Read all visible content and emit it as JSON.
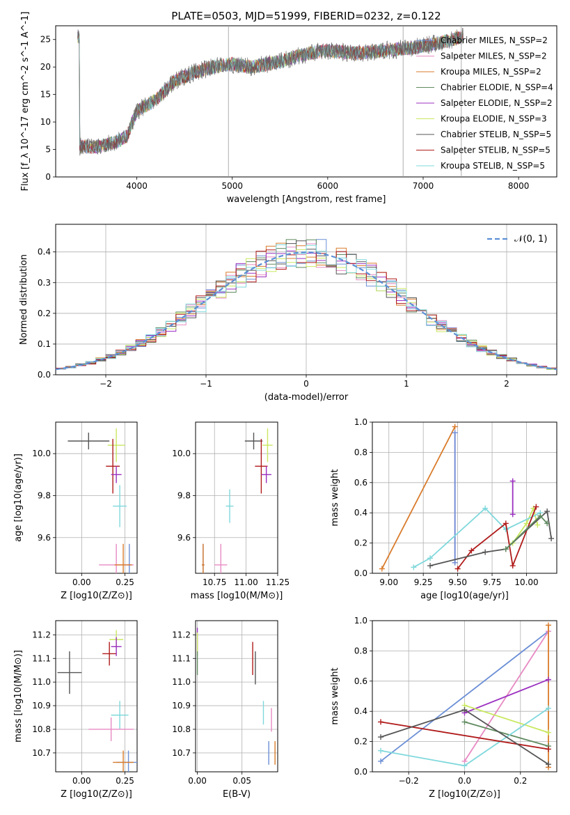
{
  "figure": {
    "title": "PLATE=0503, MJD=51999, FIBERID=0232, z=0.122"
  },
  "colors": {
    "chabrier_miles": "#6b8fd6",
    "salpeter_miles": "#e78ac3",
    "kroupa_miles": "#d97b2b",
    "chabrier_elodie": "#5f8a5f",
    "salpeter_elodie": "#9b30c0",
    "kroupa_elodie": "#c9e860",
    "chabrier_stelib": "#555555",
    "salpeter_stelib": "#b01a1a",
    "kroupa_stelib": "#7fd8dc",
    "norm_curve": "#5b8fd6",
    "grid": "#b0b0b0"
  },
  "legend": {
    "top": [
      "Chabrier MILES, N_SSP=2",
      "Salpeter MILES, N_SSP=2",
      "Kroupa MILES, N_SSP=2",
      "Chabrier ELODIE, N_SSP=4",
      "Salpeter ELODIE, N_SSP=2",
      "Kroupa ELODIE, N_SSP=3",
      "Chabrier STELIB, N_SSP=5",
      "Salpeter STELIB, N_SSP=5",
      "Kroupa STELIB, N_SSP=5"
    ],
    "hist": "𝒩(0, 1)"
  },
  "chart_data": [
    {
      "id": "spectrum",
      "type": "line",
      "xlabel": "wavelength [Angstrom, rest frame]",
      "ylabel": "Flux [f_λ 10^-17 erg cm^-2 s^-1 A^-1]",
      "xlim": [
        3150,
        8400
      ],
      "ylim": [
        0,
        27.5
      ],
      "xticks": [
        4000,
        5000,
        6000,
        7000,
        8000
      ],
      "yticks": [
        0,
        5,
        10,
        15,
        20,
        25
      ],
      "grid": false,
      "legend_position": "top-right",
      "data_trend": {
        "x": [
          3400,
          3600,
          3800,
          3900,
          4000,
          4200,
          4400,
          4600,
          4800,
          5000,
          5200,
          5500,
          5800,
          6000,
          6300,
          6600,
          6900,
          7200,
          7400
        ],
        "y": [
          5.5,
          5.5,
          6.5,
          7.5,
          12,
          14,
          17.5,
          19,
          20,
          20.5,
          20,
          21,
          22.5,
          23,
          22.5,
          23,
          23.5,
          24.5,
          25.5
        ]
      }
    },
    {
      "id": "residual-hist",
      "type": "histogram",
      "xlabel": "(data-model)/error",
      "ylabel": "Normed distribution",
      "xlim": [
        -2.5,
        2.5
      ],
      "ylim": [
        0,
        0.49
      ],
      "xticks": [
        -2,
        -1,
        0,
        1,
        2
      ],
      "yticks": [
        0.0,
        0.1,
        0.2,
        0.3,
        0.4
      ],
      "grid": true,
      "legend_position": "top-right",
      "bin_width": 0.1
    },
    {
      "id": "age-vs-z",
      "type": "errorbar",
      "xlabel": "Z [log10(Z/Z⊙)]",
      "ylabel": "age [log10(age/yr)]",
      "xlim": [
        -0.15,
        0.32
      ],
      "ylim": [
        9.43,
        10.15
      ],
      "xticks": [
        0.0,
        0.25
      ],
      "yticks": [
        9.6,
        9.8,
        10.0
      ],
      "grid": true,
      "points": [
        {
          "model": "chabrier_stelib",
          "x": 0.04,
          "y": 10.06,
          "xerr": 0.12,
          "yerr": 0.04
        },
        {
          "model": "kroupa_elodie",
          "x": 0.2,
          "y": 10.04,
          "xerr": 0.05,
          "yerr": 0.08
        },
        {
          "model": "salpeter_stelib",
          "x": 0.18,
          "y": 9.94,
          "xerr": 0.04,
          "yerr": 0.13
        },
        {
          "model": "salpeter_elodie",
          "x": 0.2,
          "y": 9.9,
          "xerr": 0.03,
          "yerr": 0.04
        },
        {
          "model": "kroupa_stelib",
          "x": 0.22,
          "y": 9.75,
          "xerr": 0.04,
          "yerr": 0.1
        },
        {
          "model": "chabrier_miles",
          "x": 0.275,
          "y": 9.47,
          "xerr": 0.01,
          "yerr": 0.1
        },
        {
          "model": "salpeter_miles",
          "x": 0.2,
          "y": 9.47,
          "xerr": 0.1,
          "yerr": 0.1
        },
        {
          "model": "kroupa_miles",
          "x": 0.24,
          "y": 9.47,
          "xerr": 0.05,
          "yerr": 0.1
        }
      ]
    },
    {
      "id": "age-vs-mass",
      "type": "errorbar",
      "xlabel": "mass [log10(M/M⊙)]",
      "ylabel": "",
      "xlim": [
        10.6,
        11.25
      ],
      "ylim": [
        9.43,
        10.15
      ],
      "xticks": [
        10.75,
        11.0,
        11.25
      ],
      "yticks": [
        9.6,
        9.8,
        10.0
      ],
      "grid": true,
      "points": [
        {
          "model": "chabrier_stelib",
          "x": 11.06,
          "y": 10.06,
          "xerr": 0.07,
          "yerr": 0.04
        },
        {
          "model": "kroupa_elodie",
          "x": 11.17,
          "y": 10.04,
          "xerr": 0.04,
          "yerr": 0.08
        },
        {
          "model": "salpeter_stelib",
          "x": 11.12,
          "y": 9.94,
          "xerr": 0.05,
          "yerr": 0.13
        },
        {
          "model": "salpeter_elodie",
          "x": 11.16,
          "y": 9.9,
          "xerr": 0.04,
          "yerr": 0.04
        },
        {
          "model": "kroupa_stelib",
          "x": 10.87,
          "y": 9.75,
          "xerr": 0.03,
          "yerr": 0.08
        },
        {
          "model": "chabrier_miles",
          "x": 10.66,
          "y": 9.47,
          "xerr": 0.01,
          "yerr": 0.1
        },
        {
          "model": "salpeter_miles",
          "x": 10.8,
          "y": 9.47,
          "xerr": 0.05,
          "yerr": 0.1
        },
        {
          "model": "kroupa_miles",
          "x": 10.66,
          "y": 9.47,
          "xerr": 0.01,
          "yerr": 0.1
        }
      ]
    },
    {
      "id": "mass-weight-vs-age",
      "type": "line",
      "xlabel": "age [log10(age/yr)]",
      "ylabel": "mass weight",
      "xlim": [
        8.88,
        10.22
      ],
      "ylim": [
        0,
        1
      ],
      "xticks": [
        9.0,
        9.25,
        9.5,
        9.75,
        10.0
      ],
      "yticks": [
        0.0,
        0.2,
        0.4,
        0.6,
        0.8,
        1.0
      ],
      "grid": true,
      "series": [
        {
          "model": "kroupa_miles",
          "x": [
            8.95,
            9.48
          ],
          "y": [
            0.03,
            0.97
          ]
        },
        {
          "model": "salpeter_miles",
          "x": [
            9.48,
            9.48
          ],
          "y": [
            0.07,
            0.93
          ]
        },
        {
          "model": "chabrier_miles",
          "x": [
            9.48,
            9.48
          ],
          "y": [
            0.07,
            0.93
          ]
        },
        {
          "model": "salpeter_elodie",
          "x": [
            9.9,
            9.9
          ],
          "y": [
            0.39,
            0.61
          ]
        },
        {
          "model": "kroupa_elodie",
          "x": [
            9.9,
            10.0,
            10.05,
            10.08
          ],
          "y": [
            0.2,
            0.33,
            0.43,
            0.32
          ]
        },
        {
          "model": "kroupa_stelib",
          "x": [
            9.18,
            9.3,
            9.7,
            9.85,
            10.1
          ],
          "y": [
            0.04,
            0.1,
            0.43,
            0.29,
            0.4
          ]
        },
        {
          "model": "salpeter_stelib",
          "x": [
            9.5,
            9.6,
            9.85,
            9.9,
            10.07
          ],
          "y": [
            0.03,
            0.15,
            0.33,
            0.05,
            0.44
          ]
        },
        {
          "model": "chabrier_stelib",
          "x": [
            9.3,
            9.7,
            9.85,
            10.15,
            10.18
          ],
          "y": [
            0.05,
            0.14,
            0.16,
            0.41,
            0.23
          ]
        },
        {
          "model": "chabrier_elodie",
          "x": [
            9.85,
            10.1,
            10.15
          ],
          "y": [
            0.16,
            0.38,
            0.33
          ]
        }
      ]
    },
    {
      "id": "mass-vs-z",
      "type": "errorbar",
      "xlabel": "Z [log10(Z/Z⊙)]",
      "ylabel": "mass [log10(M/M⊙)]",
      "xlim": [
        -0.15,
        0.32
      ],
      "ylim": [
        10.62,
        11.26
      ],
      "xticks": [
        0.0,
        0.25
      ],
      "yticks": [
        10.7,
        10.8,
        10.9,
        11.0,
        11.1,
        11.2
      ],
      "grid": true,
      "points": [
        {
          "model": "chabrier_stelib",
          "x": -0.07,
          "y": 11.04,
          "xerr": 0.07,
          "yerr": 0.09
        },
        {
          "model": "kroupa_elodie",
          "x": 0.2,
          "y": 11.18,
          "xerr": 0.04,
          "yerr": 0.04
        },
        {
          "model": "salpeter_stelib",
          "x": 0.16,
          "y": 11.12,
          "xerr": 0.04,
          "yerr": 0.05
        },
        {
          "model": "salpeter_elodie",
          "x": 0.2,
          "y": 11.15,
          "xerr": 0.03,
          "yerr": 0.04
        },
        {
          "model": "kroupa_stelib",
          "x": 0.22,
          "y": 10.86,
          "xerr": 0.05,
          "yerr": 0.06
        },
        {
          "model": "chabrier_miles",
          "x": 0.27,
          "y": 10.66,
          "xerr": 0.07,
          "yerr": 0.05
        },
        {
          "model": "salpeter_miles",
          "x": 0.17,
          "y": 10.8,
          "xerr": 0.13,
          "yerr": 0.05
        },
        {
          "model": "kroupa_miles",
          "x": 0.24,
          "y": 10.66,
          "xerr": 0.06,
          "yerr": 0.05
        }
      ]
    },
    {
      "id": "mass-vs-ebv",
      "type": "errorbar",
      "xlabel": "E(B-V)",
      "ylabel": "",
      "xlim": [
        -0.002,
        0.09
      ],
      "ylim": [
        10.62,
        11.26
      ],
      "xticks": [
        0.0,
        0.05
      ],
      "yticks": [
        10.7,
        10.8,
        10.9,
        11.0,
        11.1,
        11.2
      ],
      "grid": true,
      "points": [
        {
          "model": "salpeter_elodie",
          "x": 0.0,
          "y": 11.18,
          "xerr": 0.0,
          "yerr": 0.05
        },
        {
          "model": "kroupa_elodie",
          "x": 0.0,
          "y": 11.16,
          "xerr": 0.0,
          "yerr": 0.05
        },
        {
          "model": "chabrier_elodie",
          "x": 0.0,
          "y": 11.08,
          "xerr": 0.0,
          "yerr": 0.05
        },
        {
          "model": "salpeter_stelib",
          "x": 0.062,
          "y": 11.1,
          "xerr": 0.0,
          "yerr": 0.07
        },
        {
          "model": "chabrier_stelib",
          "x": 0.065,
          "y": 11.06,
          "xerr": 0.0,
          "yerr": 0.07
        },
        {
          "model": "kroupa_stelib",
          "x": 0.074,
          "y": 10.87,
          "xerr": 0.0,
          "yerr": 0.05
        },
        {
          "model": "salpeter_miles",
          "x": 0.083,
          "y": 10.84,
          "xerr": 0.0,
          "yerr": 0.05
        },
        {
          "model": "chabrier_miles",
          "x": 0.08,
          "y": 10.7,
          "xerr": 0.0,
          "yerr": 0.05
        },
        {
          "model": "kroupa_miles",
          "x": 0.087,
          "y": 10.7,
          "xerr": 0.0,
          "yerr": 0.05
        }
      ]
    },
    {
      "id": "mass-weight-vs-z",
      "type": "line",
      "xlabel": "Z [log10(Z/Z⊙)]",
      "ylabel": "mass weight",
      "xlim": [
        -0.33,
        0.33
      ],
      "ylim": [
        0,
        1
      ],
      "xticks": [
        -0.2,
        0.0,
        0.2
      ],
      "yticks": [
        0.0,
        0.2,
        0.4,
        0.6,
        0.8,
        1.0
      ],
      "grid": true,
      "series": [
        {
          "model": "chabrier_miles",
          "x": [
            -0.3,
            0.3
          ],
          "y": [
            0.07,
            0.93
          ]
        },
        {
          "model": "salpeter_miles",
          "x": [
            0.0,
            0.3
          ],
          "y": [
            0.07,
            0.93
          ]
        },
        {
          "model": "kroupa_miles",
          "x": [
            0.3,
            0.3
          ],
          "y": [
            0.03,
            0.97
          ]
        },
        {
          "model": "salpeter_elodie",
          "x": [
            0.0,
            0.3
          ],
          "y": [
            0.39,
            0.61
          ]
        },
        {
          "model": "kroupa_elodie",
          "x": [
            0.0,
            0.3
          ],
          "y": [
            0.44,
            0.26
          ]
        },
        {
          "model": "chabrier_elodie",
          "x": [
            0.0,
            0.3
          ],
          "y": [
            0.33,
            0.17
          ]
        },
        {
          "model": "kroupa_stelib",
          "x": [
            -0.3,
            0.0,
            0.3
          ],
          "y": [
            0.14,
            0.04,
            0.42
          ]
        },
        {
          "model": "salpeter_stelib",
          "x": [
            -0.3,
            0.3
          ],
          "y": [
            0.33,
            0.15
          ]
        },
        {
          "model": "chabrier_stelib",
          "x": [
            -0.3,
            0.0,
            0.3
          ],
          "y": [
            0.23,
            0.41,
            0.05
          ]
        }
      ]
    }
  ]
}
